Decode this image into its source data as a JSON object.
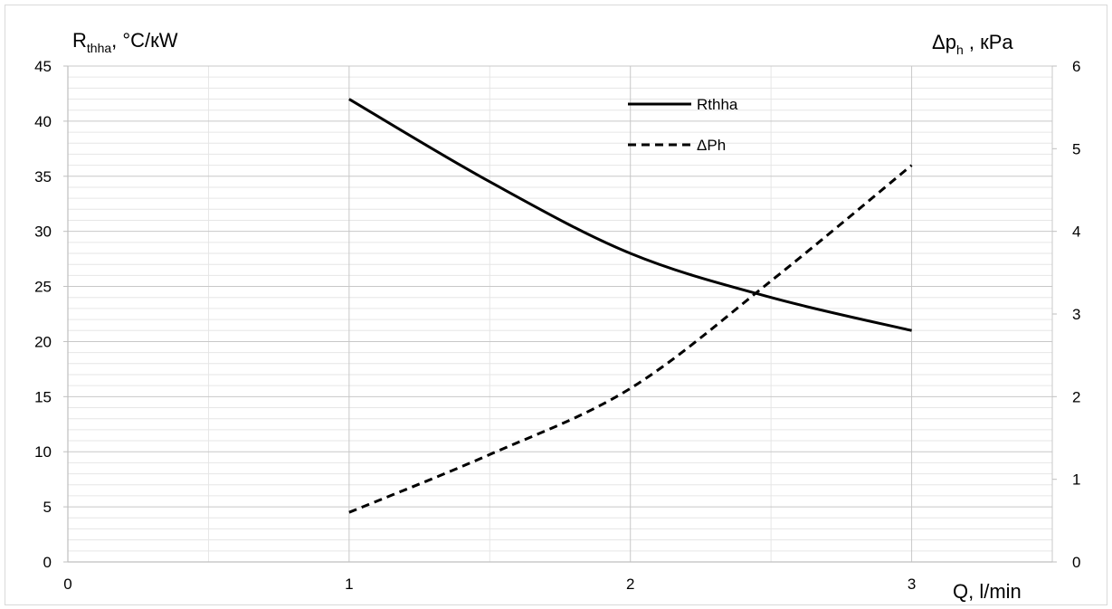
{
  "chart_data": {
    "type": "line",
    "title": "",
    "xlabel": "Q, l/min",
    "ylabel_left": {
      "main": "R",
      "sub": "thha",
      "rest": ", °C/кW"
    },
    "ylabel_right": {
      "main": "Δp",
      "sub": "h",
      "rest": " , кPa"
    },
    "xlim": [
      0,
      3.5
    ],
    "xticks": [
      0,
      1,
      2,
      3
    ],
    "ylim_left": [
      0,
      45
    ],
    "yticks_left": [
      0,
      5,
      10,
      15,
      20,
      25,
      30,
      35,
      40,
      45
    ],
    "ylim_right": [
      0,
      6
    ],
    "yticks_right": [
      0,
      1,
      2,
      3,
      4,
      5,
      6
    ],
    "grid": true,
    "legend_position": "top-center",
    "series": [
      {
        "name": "Rthha",
        "axis": "left",
        "style": "solid",
        "color": "#000000",
        "x": [
          1,
          1.5,
          2,
          2.5,
          3
        ],
        "y": [
          42,
          34.5,
          28,
          24,
          21
        ]
      },
      {
        "name": "ΔPh",
        "axis": "right",
        "style": "dashed",
        "color": "#000000",
        "x": [
          1,
          1.5,
          2,
          2.5,
          3
        ],
        "y": [
          0.6,
          1.3,
          2.1,
          3.4,
          4.8
        ]
      }
    ]
  }
}
